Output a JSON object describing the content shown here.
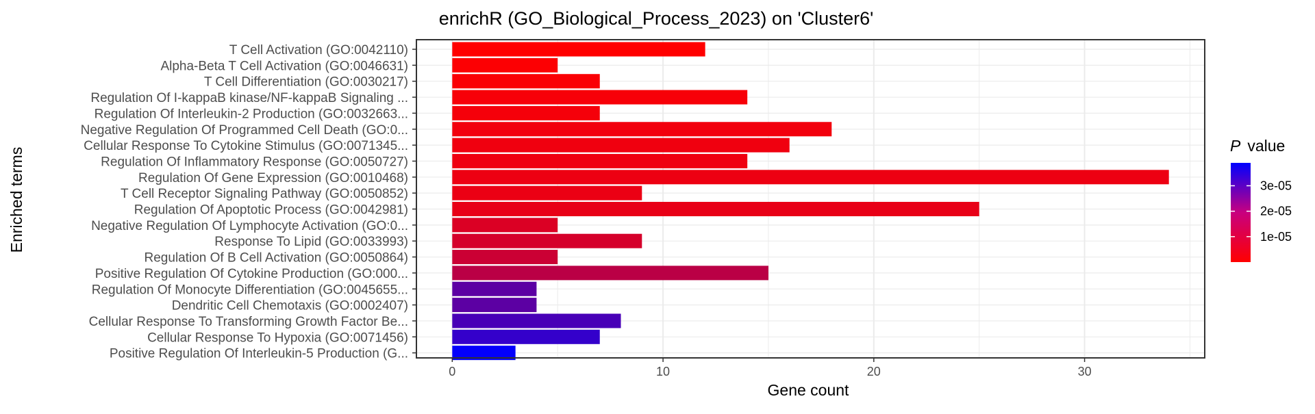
{
  "chart_data": {
    "type": "bar",
    "orientation": "horizontal",
    "title": "enrichR (GO_Biological_Process_2023) on 'Cluster6'",
    "xlabel": "Gene count",
    "ylabel": "Enriched terms",
    "xlim": [
      -1.7,
      35.7
    ],
    "xticks": [
      0,
      10,
      20,
      30
    ],
    "grid": true,
    "categories": [
      "T Cell Activation (GO:0042110)",
      "Alpha-Beta T Cell Activation (GO:0046631)",
      "T Cell Differentiation (GO:0030217)",
      "Regulation Of I-kappaB kinase/NF-kappaB Signaling ...",
      "Regulation Of Interleukin-2 Production (GO:0032663...",
      "Negative Regulation Of Programmed Cell Death (GO:0...",
      "Cellular Response To Cytokine Stimulus (GO:0071345...",
      "Regulation Of Inflammatory Response (GO:0050727)",
      "Regulation Of Gene Expression (GO:0010468)",
      "T Cell Receptor Signaling Pathway (GO:0050852)",
      "Regulation Of Apoptotic Process (GO:0042981)",
      "Negative Regulation Of Lymphocyte Activation (GO:0...",
      "Response To Lipid (GO:0033993)",
      "Regulation Of B Cell Activation (GO:0050864)",
      "Positive Regulation Of Cytokine Production (GO:000...",
      "Regulation Of Monocyte Differentiation (GO:0045655...",
      "Dendritic Cell Chemotaxis (GO:0002407)",
      "Cellular Response To Transforming Growth Factor Be...",
      "Cellular Response To Hypoxia (GO:0071456)",
      "Positive Regulation Of Interleukin-5 Production (G..."
    ],
    "values": [
      12,
      5,
      7,
      14,
      7,
      18,
      16,
      14,
      34,
      9,
      25,
      5,
      9,
      5,
      15,
      4,
      4,
      8,
      7,
      3
    ],
    "p_values": [
      1e-08,
      4e-07,
      8e-07,
      1.2e-06,
      1.6e-06,
      2e-06,
      2.3e-06,
      2.5e-06,
      2.7e-06,
      3e-06,
      3.5e-06,
      5.5e-06,
      6.5e-06,
      8e-06,
      1.05e-05,
      2.5e-05,
      2.5e-05,
      2.8e-05,
      3.1e-05,
      3.85e-05
    ],
    "legend": {
      "title_italic": "P",
      "title_rest": "value",
      "placement": "right",
      "range": [
        0,
        3.9e-05
      ],
      "ticks": [
        1e-05,
        2e-05,
        3e-05
      ],
      "tick_labels": [
        "1e-05",
        "2e-05",
        "3e-05"
      ],
      "low_color": "#ff0000",
      "high_color": "#0000ff"
    }
  }
}
